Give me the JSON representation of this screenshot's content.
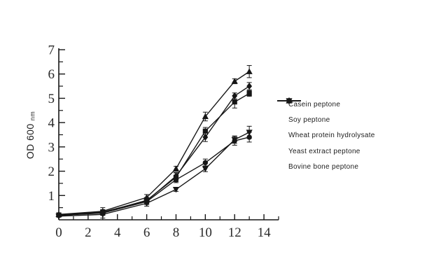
{
  "chart_data": {
    "type": "line",
    "title": "",
    "xlabel": "",
    "ylabel": "OD 600",
    "ylabel_subscript": "nm",
    "xlim": [
      0,
      15
    ],
    "ylim": [
      0,
      7
    ],
    "grid": false,
    "legend_position": "right-middle",
    "line_color": "#161616",
    "x": [
      0,
      3,
      6,
      8,
      10,
      12,
      13
    ],
    "xticks_major": [
      0,
      2,
      4,
      6,
      8,
      10,
      12,
      14
    ],
    "xticks_minor": [
      1,
      3,
      5,
      7,
      9,
      11,
      13,
      15
    ],
    "yticks_major": [
      1,
      2,
      3,
      4,
      5,
      6,
      7
    ],
    "yticks_minor": [
      0.5,
      1.5,
      2.5,
      3.5,
      4.5,
      5.5,
      6.5
    ],
    "series": [
      {
        "name": "Casein peptone",
        "marker": "square",
        "values": [
          0.2,
          0.3,
          0.8,
          1.75,
          3.65,
          4.85,
          5.2
        ],
        "errors": [
          0.05,
          0.1,
          0.12,
          0.18,
          0.15,
          0.25,
          0.12
        ]
      },
      {
        "name": "Soy peptone",
        "marker": "circle",
        "values": [
          0.18,
          0.28,
          0.75,
          1.65,
          2.35,
          3.25,
          3.4
        ],
        "errors": [
          0.04,
          0.1,
          0.12,
          0.12,
          0.15,
          0.18,
          0.2
        ]
      },
      {
        "name": "Wheat protein hydrolysate",
        "marker": "triangle-up",
        "values": [
          0.22,
          0.35,
          0.92,
          2.1,
          4.25,
          5.7,
          6.1
        ],
        "errors": [
          0.05,
          0.15,
          0.12,
          0.1,
          0.18,
          0.1,
          0.25
        ]
      },
      {
        "name": "Yeast extract peptone",
        "marker": "triangle-down",
        "values": [
          0.15,
          0.22,
          0.68,
          1.25,
          2.1,
          3.3,
          3.6
        ],
        "errors": [
          0.04,
          0.15,
          0.12,
          0.08,
          0.12,
          0.15,
          0.25
        ]
      },
      {
        "name": "Bovine bone peptone",
        "marker": "diamond",
        "values": [
          0.2,
          0.32,
          0.78,
          1.8,
          3.4,
          5.1,
          5.5
        ],
        "errors": [
          0.05,
          0.1,
          0.12,
          0.15,
          0.18,
          0.12,
          0.15
        ]
      }
    ]
  }
}
